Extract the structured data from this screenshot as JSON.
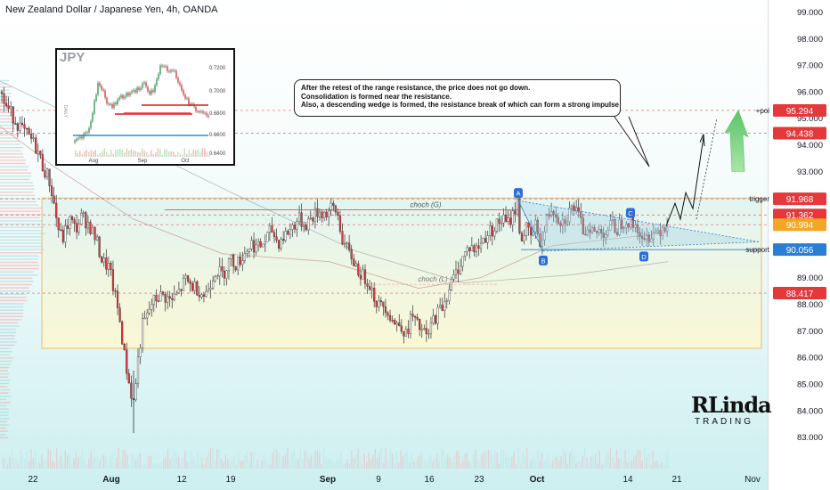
{
  "chart_data": {
    "type": "candlestick",
    "title": "New Zealand Dollar / Japanese Yen, 4h, OANDA",
    "y_ticks": [
      83.0,
      84.0,
      85.0,
      86.0,
      87.0,
      88.0,
      89.0,
      90.0,
      91.0,
      92.0,
      93.0,
      94.0,
      95.0,
      96.0,
      97.0,
      98.0,
      99.0
    ],
    "y_tick_labels": [
      "83.000",
      "84.000",
      "85.000",
      "86.000",
      "87.000",
      "88.000",
      "89.000",
      "90.000",
      "91.000",
      "92.000",
      "93.000",
      "94.000",
      "95.000",
      "96.000",
      "97.000",
      "98.000",
      "99.000"
    ],
    "ylim": [
      82.45,
      99.35
    ],
    "x_tick_labels": [
      "22",
      "Aug",
      "12",
      "19",
      "Sep",
      "9",
      "16",
      "23",
      "Oct",
      "14",
      "21",
      "Nov"
    ],
    "price_path": [
      [
        0,
        96.0
      ],
      [
        6,
        95.5
      ],
      [
        12,
        95.2
      ],
      [
        18,
        94.9
      ],
      [
        26,
        94.5
      ],
      [
        35,
        94.2
      ],
      [
        42,
        93.8
      ],
      [
        48,
        93.2
      ],
      [
        55,
        92.7
      ],
      [
        60,
        91.9
      ],
      [
        65,
        90.9
      ],
      [
        70,
        90.4
      ],
      [
        78,
        91.2
      ],
      [
        85,
        90.8
      ],
      [
        92,
        91.3
      ],
      [
        100,
        91.0
      ],
      [
        108,
        90.4
      ],
      [
        115,
        89.6
      ],
      [
        122,
        89.4
      ],
      [
        128,
        88.5
      ],
      [
        134,
        87.5
      ],
      [
        140,
        86.0
      ],
      [
        146,
        84.8
      ],
      [
        150,
        84.3
      ],
      [
        155,
        85.9
      ],
      [
        160,
        87.2
      ],
      [
        165,
        87.5
      ],
      [
        170,
        88.0
      ],
      [
        178,
        88.3
      ],
      [
        185,
        88.3
      ],
      [
        192,
        88.1
      ],
      [
        200,
        88.4
      ],
      [
        208,
        88.9
      ],
      [
        215,
        88.7
      ],
      [
        222,
        88.6
      ],
      [
        230,
        88.3
      ],
      [
        236,
        88.8
      ],
      [
        242,
        89.3
      ],
      [
        250,
        89.1
      ],
      [
        258,
        89.7
      ],
      [
        266,
        89.5
      ],
      [
        274,
        89.9
      ],
      [
        282,
        90.3
      ],
      [
        290,
        90.1
      ],
      [
        298,
        90.4
      ],
      [
        305,
        90.8
      ],
      [
        312,
        90.3
      ],
      [
        320,
        90.6
      ],
      [
        328,
        90.9
      ],
      [
        335,
        91.2
      ],
      [
        343,
        91.0
      ],
      [
        351,
        91.3
      ],
      [
        358,
        91.5
      ],
      [
        366,
        91.4
      ],
      [
        373,
        91.6
      ],
      [
        379,
        91.4
      ],
      [
        384,
        90.5
      ],
      [
        390,
        90.0
      ],
      [
        396,
        89.7
      ],
      [
        402,
        89.3
      ],
      [
        408,
        89.0
      ],
      [
        414,
        88.9
      ],
      [
        420,
        88.3
      ],
      [
        426,
        87.9
      ],
      [
        432,
        88.0
      ],
      [
        438,
        87.6
      ],
      [
        444,
        87.2
      ],
      [
        450,
        87.3
      ],
      [
        456,
        86.8
      ],
      [
        462,
        87.6
      ],
      [
        468,
        87.2
      ],
      [
        474,
        87.0
      ],
      [
        480,
        86.7
      ],
      [
        486,
        87.4
      ],
      [
        492,
        87.7
      ],
      [
        498,
        88.0
      ],
      [
        504,
        88.6
      ],
      [
        510,
        89.0
      ],
      [
        516,
        89.5
      ],
      [
        522,
        89.9
      ],
      [
        528,
        90.2
      ],
      [
        534,
        90.0
      ],
      [
        540,
        90.3
      ],
      [
        546,
        90.6
      ],
      [
        552,
        90.8
      ],
      [
        558,
        91.0
      ],
      [
        564,
        91.2
      ],
      [
        570,
        91.0
      ],
      [
        576,
        91.4
      ],
      [
        581,
        91.8
      ],
      [
        585,
        90.3
      ],
      [
        590,
        90.9
      ],
      [
        596,
        90.5
      ],
      [
        602,
        91.0
      ],
      [
        608,
        90.2
      ],
      [
        614,
        91.2
      ],
      [
        620,
        91.7
      ],
      [
        626,
        91.3
      ],
      [
        632,
        91.1
      ],
      [
        638,
        91.4
      ],
      [
        644,
        91.7
      ],
      [
        650,
        91.2
      ],
      [
        656,
        90.7
      ],
      [
        662,
        91.0
      ],
      [
        668,
        90.6
      ],
      [
        674,
        90.8
      ],
      [
        680,
        90.7
      ],
      [
        686,
        91.0
      ],
      [
        692,
        90.8
      ],
      [
        698,
        91.1
      ],
      [
        704,
        91.2
      ],
      [
        710,
        91.0
      ],
      [
        716,
        90.9
      ],
      [
        722,
        90.2
      ],
      [
        728,
        90.6
      ],
      [
        734,
        90.7
      ],
      [
        740,
        90.8
      ],
      [
        746,
        91.0
      ],
      [
        750,
        90.9
      ]
    ],
    "last_price": 90.994
  },
  "header": {
    "title": "New Zealand Dollar / Japanese Yen, 4h, OANDA"
  },
  "annotation": {
    "lines": [
      "After the retest of the range resistance, the price does not go down.",
      "Consolidation is formed near the resistance.",
      "Also, a descending wedge is formed, the resistance break of which can form a strong impulse"
    ]
  },
  "levels": [
    {
      "label": "+poi",
      "value": 95.294,
      "value_text": "95.294"
    },
    {
      "label": "",
      "value": 94.438,
      "value_text": "94.438"
    },
    {
      "label": "trigger",
      "value": 91.968,
      "value_text": "91.968"
    },
    {
      "label": "",
      "value": 91.362,
      "value_text": "91.362"
    },
    {
      "label": "",
      "value": 90.994,
      "value_text": "90.994"
    },
    {
      "label": "support",
      "value": 90.056,
      "value_text": "90.056"
    },
    {
      "label": "",
      "value": 88.417,
      "value_text": "88.417"
    }
  ],
  "structure_labels": {
    "choch_g": "choch (G)",
    "choch_l": "choch (L)"
  },
  "wedge_points": [
    "A",
    "B",
    "C",
    "D"
  ],
  "inset": {
    "title": "JPY",
    "y_labels": [
      "0.7200",
      "0.7000",
      "0.6800",
      "0.6600",
      "0.6400"
    ],
    "x_labels": [
      "Aug",
      "Sep",
      "Oct"
    ],
    "side_label": "DAILY"
  },
  "logo": {
    "main": "RLinda",
    "sub": "TRADING"
  },
  "colors": {
    "up": "#ffffff",
    "down": "#e5383b",
    "wick": "#333333",
    "level": "#e5383b",
    "range_fill": "#fff5c8",
    "range_border": "#f0a030",
    "support": "#2a7fd4",
    "arrow_green": "#6ccf74"
  }
}
